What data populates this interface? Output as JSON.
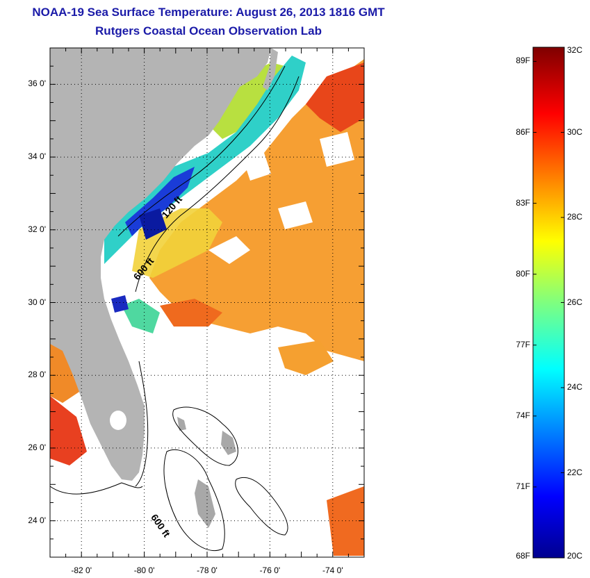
{
  "title": {
    "line1": "NOAA-19 Sea Surface Temperature:  August 26, 2013 1816 GMT",
    "line2": "Rutgers Coastal Ocean Observation Lab"
  },
  "map": {
    "lon_range": [
      -83,
      -73
    ],
    "lat_range": [
      23,
      37
    ],
    "land_color": "#b4b4b4",
    "cloud_color": "#ffffff",
    "lat_ticks": [
      {
        "value": 36,
        "label": "36 0'"
      },
      {
        "value": 34,
        "label": "34 0'"
      },
      {
        "value": 32,
        "label": "32 0'"
      },
      {
        "value": 30,
        "label": "30 0'"
      },
      {
        "value": 28,
        "label": "28 0'"
      },
      {
        "value": 26,
        "label": "26 0'"
      },
      {
        "value": 24,
        "label": "24 0'"
      }
    ],
    "lon_ticks": [
      {
        "value": -82,
        "label": "-82 0'"
      },
      {
        "value": -80,
        "label": "-80 0'"
      },
      {
        "value": -78,
        "label": "-78 0'"
      },
      {
        "value": -76,
        "label": "-76 0'"
      },
      {
        "value": -74,
        "label": "-74 0'"
      }
    ],
    "contour_labels": [
      {
        "text": "120 ft",
        "lon": -79.3,
        "lat": 32.3
      },
      {
        "text": "600 ft",
        "lon": -80.2,
        "lat": 30.6
      },
      {
        "text": "600 ft",
        "lon": -79.8,
        "lat": 24.1
      }
    ]
  },
  "colorbar": {
    "range_c": [
      20,
      32
    ],
    "fahrenheit_labels": [
      "89F",
      "86F",
      "83F",
      "80F",
      "77F",
      "74F",
      "71F",
      "68F"
    ],
    "fahrenheit_values": [
      89,
      86,
      83,
      80,
      77,
      74,
      71,
      68
    ],
    "celsius_labels": [
      "32C",
      "30C",
      "28C",
      "26C",
      "24C",
      "22C",
      "20C"
    ],
    "celsius_values": [
      32,
      30,
      28,
      26,
      24,
      22,
      20
    ]
  }
}
